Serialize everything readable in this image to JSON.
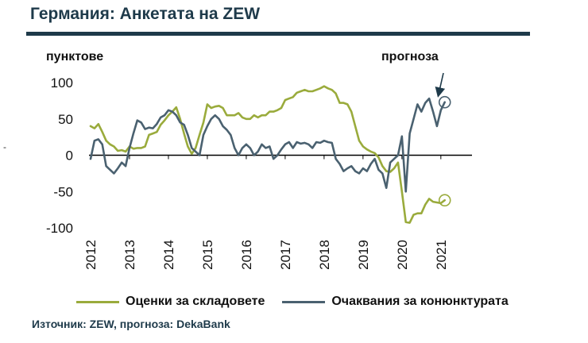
{
  "title": "Германия: Анкетата на ZEW",
  "side_mark": "-",
  "source": "Източник: ZEW, прогноза: DekaBank",
  "colors": {
    "title": "#1e3a4a",
    "current": "#9aab3c",
    "expectations": "#4a6170",
    "forecast_arrow": "#1e3a4a"
  },
  "chart_data": {
    "type": "line",
    "title": "Германия: Анкетата на ZEW",
    "ylabel": "пунктове",
    "xlabel": "",
    "ylim": [
      -100,
      100
    ],
    "xlim": [
      2012.0,
      2021.8
    ],
    "yticks": [
      100,
      50,
      0,
      -50,
      -100
    ],
    "ytick_labels": [
      "100",
      "50",
      "0",
      "-50",
      "-100"
    ],
    "xticks": [
      2012,
      2013,
      2014,
      2015,
      2016,
      2017,
      2018,
      2019,
      2020,
      2021
    ],
    "xtick_labels": [
      "2012",
      "2013",
      "2014",
      "2015",
      "2016",
      "2017",
      "2018",
      "2019",
      "2020",
      "2021"
    ],
    "zero_line": true,
    "annotation": {
      "text": "прогноза"
    },
    "series": [
      {
        "name": "Оценки за складовете",
        "x": [
          2012.0,
          2012.1,
          2012.2,
          2012.3,
          2012.4,
          2012.5,
          2012.6,
          2012.7,
          2012.8,
          2012.9,
          2013.0,
          2013.1,
          2013.2,
          2013.3,
          2013.4,
          2013.5,
          2013.6,
          2013.7,
          2013.8,
          2013.9,
          2014.0,
          2014.1,
          2014.2,
          2014.3,
          2014.4,
          2014.5,
          2014.6,
          2014.7,
          2014.8,
          2014.9,
          2015.0,
          2015.1,
          2015.2,
          2015.3,
          2015.4,
          2015.5,
          2015.6,
          2015.7,
          2015.8,
          2015.9,
          2016.0,
          2016.1,
          2016.2,
          2016.3,
          2016.4,
          2016.5,
          2016.6,
          2016.7,
          2016.8,
          2016.9,
          2017.0,
          2017.1,
          2017.2,
          2017.3,
          2017.4,
          2017.5,
          2017.6,
          2017.7,
          2017.8,
          2017.9,
          2018.0,
          2018.1,
          2018.2,
          2018.3,
          2018.4,
          2018.5,
          2018.6,
          2018.7,
          2018.8,
          2018.9,
          2019.0,
          2019.1,
          2019.2,
          2019.3,
          2019.4,
          2019.5,
          2019.6,
          2019.7,
          2019.8,
          2019.9,
          2020.0,
          2020.1,
          2020.2,
          2020.3,
          2020.4,
          2020.5,
          2020.6,
          2020.7,
          2020.8,
          2020.9,
          2021.0,
          2021.1
        ],
        "values": [
          40,
          37,
          43,
          32,
          20,
          15,
          12,
          6,
          7,
          5,
          12,
          9,
          10,
          10,
          12,
          28,
          30,
          32,
          42,
          48,
          55,
          60,
          66,
          50,
          30,
          12,
          2,
          10,
          28,
          45,
          70,
          65,
          67,
          68,
          65,
          55,
          55,
          55,
          58,
          52,
          50,
          50,
          55,
          52,
          55,
          55,
          60,
          60,
          62,
          65,
          76,
          78,
          80,
          86,
          88,
          90,
          88,
          88,
          90,
          92,
          95,
          92,
          90,
          85,
          72,
          72,
          70,
          60,
          40,
          20,
          12,
          8,
          5,
          3,
          -3,
          -15,
          -22,
          -23,
          -18,
          -10,
          -50,
          -92,
          -93,
          -82,
          -80,
          -80,
          -68,
          -60,
          -64,
          -65,
          -66,
          -62
        ]
      },
      {
        "name": "Очаквания за конюнктурата",
        "x": [
          2012.0,
          2012.1,
          2012.2,
          2012.3,
          2012.4,
          2012.5,
          2012.6,
          2012.7,
          2012.8,
          2012.9,
          2013.0,
          2013.1,
          2013.2,
          2013.3,
          2013.4,
          2013.5,
          2013.6,
          2013.7,
          2013.8,
          2013.9,
          2014.0,
          2014.1,
          2014.2,
          2014.3,
          2014.4,
          2014.5,
          2014.6,
          2014.7,
          2014.8,
          2014.9,
          2015.0,
          2015.1,
          2015.2,
          2015.3,
          2015.4,
          2015.5,
          2015.6,
          2015.7,
          2015.8,
          2015.9,
          2016.0,
          2016.1,
          2016.2,
          2016.3,
          2016.4,
          2016.5,
          2016.6,
          2016.7,
          2016.8,
          2016.9,
          2017.0,
          2017.1,
          2017.2,
          2017.3,
          2017.4,
          2017.5,
          2017.6,
          2017.7,
          2017.8,
          2017.9,
          2018.0,
          2018.1,
          2018.2,
          2018.3,
          2018.4,
          2018.5,
          2018.6,
          2018.7,
          2018.8,
          2018.9,
          2019.0,
          2019.1,
          2019.2,
          2019.3,
          2019.4,
          2019.5,
          2019.6,
          2019.7,
          2019.8,
          2019.9,
          2020.0,
          2020.1,
          2020.2,
          2020.3,
          2020.4,
          2020.5,
          2020.6,
          2020.7,
          2020.8,
          2020.9,
          2021.0,
          2021.1
        ],
        "values": [
          -5,
          20,
          22,
          15,
          -15,
          -20,
          -25,
          -18,
          -10,
          -15,
          10,
          30,
          48,
          45,
          36,
          38,
          37,
          43,
          52,
          55,
          62,
          60,
          55,
          45,
          42,
          28,
          10,
          5,
          0,
          28,
          40,
          50,
          55,
          50,
          40,
          35,
          28,
          10,
          0,
          10,
          15,
          10,
          0,
          5,
          15,
          10,
          12,
          -5,
          0,
          8,
          15,
          18,
          10,
          18,
          16,
          17,
          15,
          10,
          18,
          17,
          20,
          18,
          17,
          -5,
          -12,
          -22,
          -18,
          -15,
          -22,
          -25,
          -18,
          -22,
          -12,
          -5,
          -20,
          -25,
          -45,
          -10,
          -5,
          0,
          26,
          -50,
          30,
          50,
          70,
          60,
          72,
          78,
          60,
          40,
          62,
          73
        ]
      }
    ]
  }
}
